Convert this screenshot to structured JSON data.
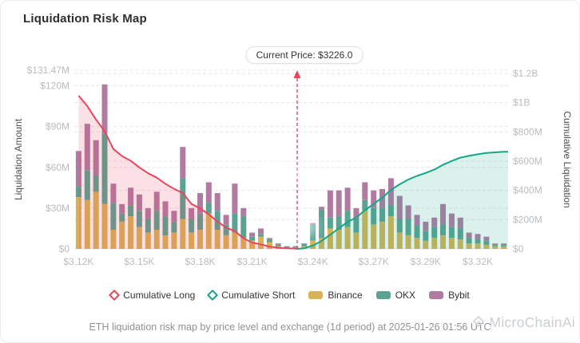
{
  "header": {
    "title": "Liquidation Risk Map"
  },
  "tooltip": {
    "label": "Current Price: $3226.0"
  },
  "legend": {
    "items": [
      {
        "label": "Cumulative Long",
        "color": "#e8465f",
        "marker": "diamond"
      },
      {
        "label": "Cumulative Short",
        "color": "#17a589",
        "marker": "diamond"
      },
      {
        "label": "Binance",
        "color": "#d8b356",
        "marker": "swatch"
      },
      {
        "label": "OKX",
        "color": "#5aa392",
        "marker": "swatch"
      },
      {
        "label": "Bybit",
        "color": "#b17ba1",
        "marker": "swatch"
      }
    ]
  },
  "footer": {
    "caption": "ETH liquidation risk map by price level and exchange (1d period) at 2025-01-26 01:56 UTC"
  },
  "watermark": {
    "text": "MicroChainAi"
  },
  "chart_data": {
    "type": "bar",
    "subtype": "stacked bars with cumulative overlay lines",
    "title": "Liquidation Risk Map",
    "units": "USD",
    "current_price": 3226.0,
    "current_price_index": 25,
    "categories": [
      3112,
      3117,
      3121,
      3126,
      3130,
      3135,
      3139,
      3144,
      3148,
      3153,
      3157,
      3162,
      3167,
      3171,
      3176,
      3180,
      3185,
      3189,
      3194,
      3198,
      3203,
      3208,
      3212,
      3217,
      3221,
      3226,
      3230,
      3235,
      3239,
      3244,
      3248,
      3253,
      3258,
      3262,
      3267,
      3271,
      3276,
      3280,
      3285,
      3289,
      3294,
      3298,
      3303,
      3308,
      3312,
      3317,
      3321,
      3326,
      3330,
      3335
    ],
    "x_axis": {
      "ticks": [
        {
          "i": 0,
          "label": "$3.12K"
        },
        {
          "i": 7,
          "label": "$3.15K"
        },
        {
          "i": 14,
          "label": "$3.18K"
        },
        {
          "i": 20,
          "label": "$3.21K"
        },
        {
          "i": 27,
          "label": "$3.24K"
        },
        {
          "i": 34,
          "label": "$3.27K"
        },
        {
          "i": 40,
          "label": "$3.29K"
        },
        {
          "i": 46,
          "label": "$3.32K"
        }
      ]
    },
    "left_axis": {
      "name": "Liquidation Amount",
      "max": 131.47,
      "ticks": [
        {
          "v": 0,
          "label": "$0"
        },
        {
          "v": 30,
          "label": "$30M"
        },
        {
          "v": 60,
          "label": "$60M"
        },
        {
          "v": 90,
          "label": "$90M"
        },
        {
          "v": 120,
          "label": "$120M"
        },
        {
          "v": 131.47,
          "label": "$131.47M"
        }
      ]
    },
    "right_axis": {
      "name": "Cumulative Liquidation",
      "max": 1200,
      "ticks": [
        {
          "v": 0,
          "label": "$0"
        },
        {
          "v": 200,
          "label": "$200M"
        },
        {
          "v": 400,
          "label": "$400M"
        },
        {
          "v": 600,
          "label": "$600M"
        },
        {
          "v": 800,
          "label": "$800M"
        },
        {
          "v": 1000,
          "label": "$1B"
        },
        {
          "v": 1200,
          "label": "$1.2B"
        }
      ]
    },
    "series": [
      {
        "name": "Binance",
        "type": "bar",
        "color": "#d8b356",
        "axis": "left",
        "values_M": [
          38,
          36,
          42,
          33,
          14,
          20,
          24,
          16,
          12,
          14,
          10,
          12,
          22,
          12,
          14,
          26,
          14,
          10,
          12,
          8,
          6,
          9,
          5,
          2,
          1,
          1,
          2,
          6,
          8,
          15,
          14,
          16,
          12,
          28,
          18,
          20,
          24,
          12,
          10,
          8,
          6,
          8,
          10,
          8,
          7,
          4,
          4,
          3,
          2,
          2
        ]
      },
      {
        "name": "OKX",
        "type": "bar",
        "color": "#5aa392",
        "axis": "left",
        "values_M": [
          8,
          22,
          12,
          52,
          20,
          6,
          8,
          12,
          10,
          14,
          14,
          8,
          30,
          10,
          12,
          8,
          14,
          8,
          14,
          16,
          3,
          2,
          2,
          1,
          1,
          1,
          2,
          12,
          21,
          8,
          10,
          12,
          10,
          8,
          12,
          10,
          8,
          10,
          12,
          9,
          7,
          8,
          8,
          8,
          8,
          4,
          3,
          3,
          1,
          1
        ]
      },
      {
        "name": "Bybit",
        "type": "bar",
        "color": "#b17ba1",
        "axis": "left",
        "values_M": [
          26,
          34,
          26,
          36,
          14,
          7,
          13,
          12,
          8,
          14,
          11,
          8,
          23,
          8,
          15,
          15,
          13,
          7,
          22,
          6,
          3,
          4,
          1,
          1,
          0,
          0,
          0,
          1,
          2,
          20,
          19,
          17,
          8,
          13,
          13,
          14,
          20,
          17,
          10,
          8,
          7,
          7,
          15,
          10,
          8,
          4,
          4,
          3,
          1,
          1
        ]
      },
      {
        "name": "Cumulative Long",
        "type": "line",
        "color": "#e8465f",
        "axis": "right",
        "start_index": 0,
        "values_M": [
          1048,
          976,
          884,
          804,
          683,
          635,
          602,
          557,
          517,
          487,
          445,
          410,
          382,
          307,
          277,
          236,
          187,
          146,
          121,
          73,
          43,
          31,
          16,
          8,
          4,
          2
        ]
      },
      {
        "name": "Cumulative Short",
        "type": "line",
        "color": "#17a589",
        "axis": "right",
        "start_index": 26,
        "values_M": [
          4,
          23,
          54,
          97,
          140,
          185,
          215,
          264,
          307,
          351,
          403,
          442,
          474,
          499,
          519,
          542,
          575,
          601,
          624,
          636,
          647,
          656,
          660,
          664
        ]
      }
    ]
  }
}
